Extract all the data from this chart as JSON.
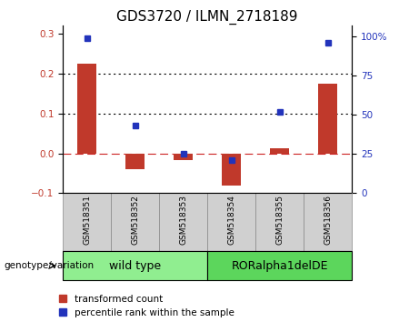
{
  "title": "GDS3720 / ILMN_2718189",
  "samples": [
    "GSM518351",
    "GSM518352",
    "GSM518353",
    "GSM518354",
    "GSM518355",
    "GSM518356"
  ],
  "red_bars": [
    0.225,
    -0.04,
    -0.018,
    -0.08,
    0.012,
    0.175
  ],
  "blue_dots_pct": [
    99,
    43,
    25,
    21,
    52,
    96
  ],
  "groups": [
    {
      "label": "wild type",
      "start": 0,
      "end": 3,
      "color": "#90EE90"
    },
    {
      "label": "RORalpha1delDE",
      "start": 3,
      "end": 6,
      "color": "#5CD65C"
    }
  ],
  "ylim_left": [
    -0.1,
    0.32
  ],
  "ylim_right": [
    0,
    106.67
  ],
  "yticks_left": [
    -0.1,
    0.0,
    0.1,
    0.2,
    0.3
  ],
  "yticks_right": [
    0,
    25,
    50,
    75,
    100
  ],
  "ytick_labels_right": [
    "0",
    "25",
    "50",
    "75",
    "100%"
  ],
  "bar_color": "#c0392b",
  "dot_color": "#2233bb",
  "legend_items": [
    "transformed count",
    "percentile rank within the sample"
  ],
  "genotype_label": "genotype/variation",
  "tick_fontsize": 7.5,
  "title_fontsize": 11,
  "group_label_fontsize": 9
}
